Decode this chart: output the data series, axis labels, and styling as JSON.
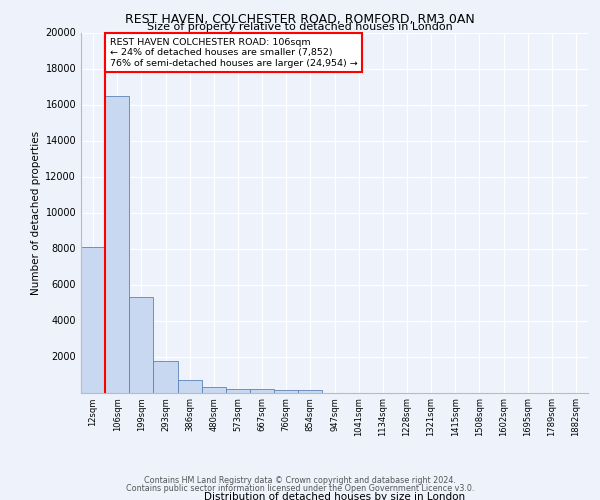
{
  "title1": "REST HAVEN, COLCHESTER ROAD, ROMFORD, RM3 0AN",
  "title2": "Size of property relative to detached houses in London",
  "xlabel": "Distribution of detached houses by size in London",
  "ylabel": "Number of detached properties",
  "bin_labels": [
    "12sqm",
    "106sqm",
    "199sqm",
    "293sqm",
    "386sqm",
    "480sqm",
    "573sqm",
    "667sqm",
    "760sqm",
    "854sqm",
    "947sqm",
    "1041sqm",
    "1134sqm",
    "1228sqm",
    "1321sqm",
    "1415sqm",
    "1508sqm",
    "1602sqm",
    "1695sqm",
    "1789sqm",
    "1882sqm"
  ],
  "bar_heights": [
    8100,
    16500,
    5300,
    1750,
    700,
    300,
    220,
    180,
    160,
    140,
    0,
    0,
    0,
    0,
    0,
    0,
    0,
    0,
    0,
    0,
    0
  ],
  "bar_color": "#c8d8f0",
  "bar_edge_color": "#5b82b8",
  "vline_x": 1,
  "vline_color": "red",
  "annotation_text": "REST HAVEN COLCHESTER ROAD: 106sqm\n← 24% of detached houses are smaller (7,852)\n76% of semi-detached houses are larger (24,954) →",
  "annotation_box_color": "white",
  "annotation_box_edge": "red",
  "ylim": [
    0,
    20000
  ],
  "yticks": [
    0,
    2000,
    4000,
    6000,
    8000,
    10000,
    12000,
    14000,
    16000,
    18000,
    20000
  ],
  "footer1": "Contains HM Land Registry data © Crown copyright and database right 2024.",
  "footer2": "Contains public sector information licensed under the Open Government Licence v3.0.",
  "bg_color": "#edf2fb",
  "plot_bg_color": "#edf2fb",
  "grid_color": "white"
}
